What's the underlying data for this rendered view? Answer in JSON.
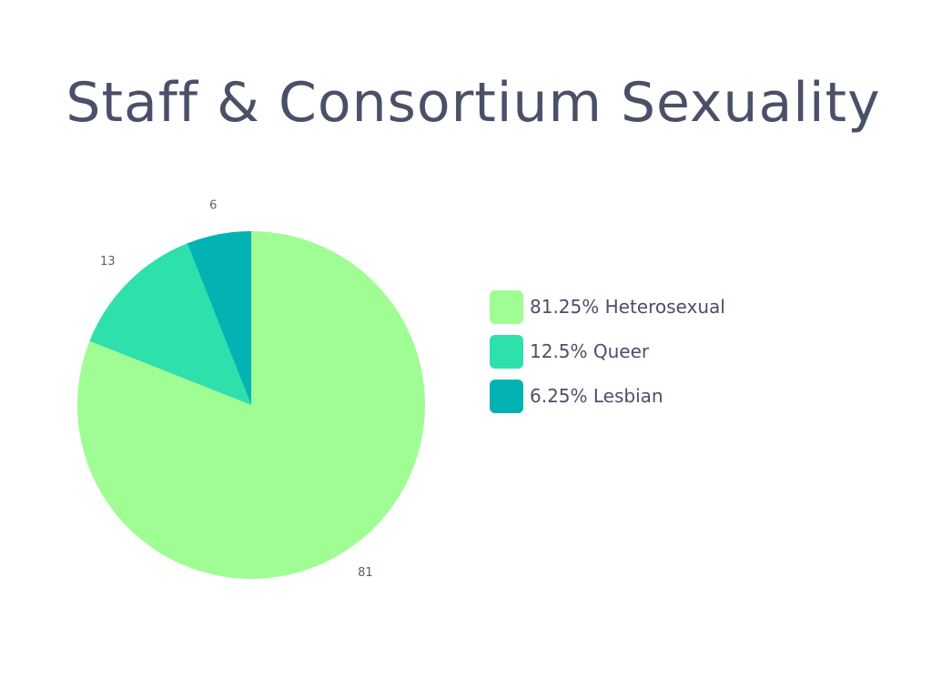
{
  "chart_data": {
    "type": "pie",
    "title": "Staff & Consortium Sexuality",
    "slices": [
      {
        "label": "81.25% Heterosexual",
        "value": 81,
        "color": "#a0fd94"
      },
      {
        "label": "12.5% Queer",
        "value": 13,
        "color": "#2ee0ab"
      },
      {
        "label": "6.25% Lesbian",
        "value": 6,
        "color": "#03b3b3"
      }
    ],
    "legend_position": "right"
  }
}
